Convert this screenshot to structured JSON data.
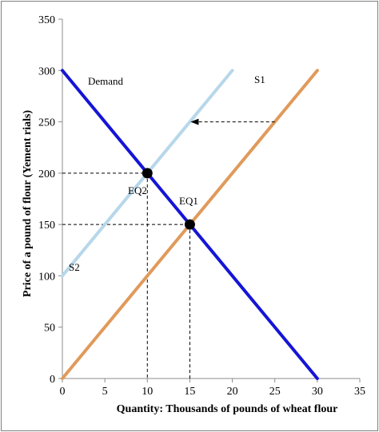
{
  "chart_data": {
    "type": "line",
    "xlabel": "Quantity: Thousands of pounds of wheat flour",
    "ylabel": "Price of a pound of flour (Yement rials)",
    "xlim": [
      0,
      35
    ],
    "ylim": [
      0,
      350
    ],
    "x_ticks": [
      0,
      5,
      10,
      15,
      20,
      25,
      30,
      35
    ],
    "y_ticks": [
      0,
      50,
      100,
      150,
      200,
      250,
      300,
      350
    ],
    "grid": false,
    "series": [
      {
        "name": "Demand",
        "color": "#1515d6",
        "x": [
          0,
          30
        ],
        "y": [
          300,
          0
        ]
      },
      {
        "name": "S1",
        "color": "#e09a5a",
        "x": [
          0,
          30
        ],
        "y": [
          0,
          300
        ]
      },
      {
        "name": "S2",
        "color": "#b7d7ea",
        "x": [
          0,
          20
        ],
        "y": [
          100,
          300
        ]
      }
    ],
    "equilibria": [
      {
        "label": "EQ1",
        "x": 15,
        "y": 150
      },
      {
        "label": "EQ2",
        "x": 10,
        "y": 200
      }
    ],
    "shift_arrow": {
      "from": [
        25,
        250
      ],
      "to": [
        15,
        250
      ]
    },
    "line_labels": [
      {
        "text": "Demand",
        "series": "Demand"
      },
      {
        "text": "S1",
        "series": "S1"
      },
      {
        "text": "S2",
        "series": "S2"
      }
    ]
  }
}
